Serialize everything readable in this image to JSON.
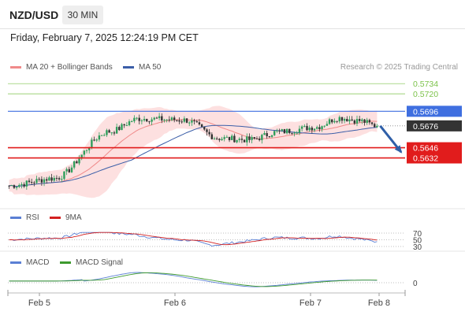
{
  "header": {
    "pair": "NZD/USD",
    "timeframe": "30 MIN",
    "datetime": "Friday, February 7, 2025 12:24:19 PM CET"
  },
  "legend": {
    "ma20": "MA 20 + Bollinger Bands",
    "ma50": "MA 50",
    "credit": "Research © 2025 Trading Central"
  },
  "colors": {
    "ma20": "#f08a8a",
    "ma50": "#3b5ea8",
    "band": "#fde0e0",
    "bull": "#2e9e5b",
    "bear": "#333333",
    "green_level": "#7cc24a",
    "blue_level": "#3f6fe0",
    "red_level": "#e11c1c",
    "current": "#333333",
    "rsi": "#5a7fd4",
    "rsi_ma": "#d32020",
    "macd": "#5a7fd4",
    "macd_signal": "#3d9a2e",
    "arrow": "#2f5fa8"
  },
  "chart_data": [
    {
      "type": "candlestick",
      "title": "NZD/USD",
      "timeframe": "30 MIN",
      "x_labels": [
        "Feb 5",
        "Feb 6",
        "Feb 7",
        "Feb 8"
      ],
      "ylim": [
        0.5598,
        0.5745
      ],
      "price": {
        "open": 0.5594,
        "trend_start": 0.5604,
        "trend_mid": 0.5686,
        "dip_low": 0.5657,
        "right_high": 0.5687,
        "last": 0.5676
      },
      "levels": [
        {
          "value": "0.5734",
          "kind": "resistance"
        },
        {
          "value": "0.5720",
          "kind": "resistance"
        },
        {
          "value": "0.5696",
          "kind": "pivot"
        },
        {
          "value": "0.5676",
          "kind": "current"
        },
        {
          "value": "0.5646",
          "kind": "support"
        },
        {
          "value": "0.5632",
          "kind": "support"
        }
      ],
      "series": [
        {
          "name": "MA 20 + Bollinger Bands"
        },
        {
          "name": "MA 50"
        }
      ],
      "forecast": {
        "from": 0.5676,
        "to": 0.564
      }
    },
    {
      "type": "line",
      "name": "RSI",
      "series": [
        {
          "name": "RSI"
        },
        {
          "name": "9MA"
        }
      ],
      "ylim": [
        20,
        80
      ],
      "ticks": [
        "70",
        "50",
        "30"
      ]
    },
    {
      "type": "line",
      "name": "MACD",
      "series": [
        {
          "name": "MACD"
        },
        {
          "name": "MACD Signal"
        }
      ],
      "ticks": [
        "0"
      ]
    }
  ]
}
